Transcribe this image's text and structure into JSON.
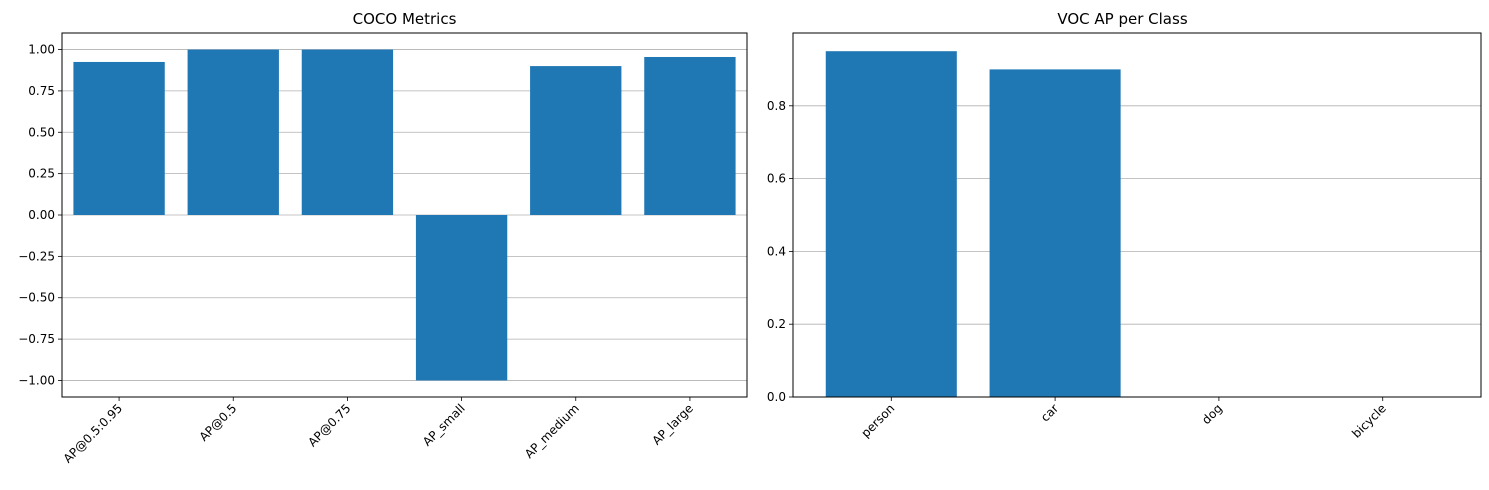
{
  "chart_data": [
    {
      "type": "bar",
      "title": "COCO Metrics",
      "xlabel": "",
      "ylabel": "",
      "categories": [
        "AP@0.5:0.95",
        "AP@0.5",
        "AP@0.75",
        "AP_small",
        "AP_medium",
        "AP_large"
      ],
      "values": [
        0.925,
        1.0,
        1.0,
        -1.0,
        0.9,
        0.955
      ],
      "ylim": [
        -1.1,
        1.1
      ],
      "yticks": [
        -1.0,
        -0.75,
        -0.5,
        -0.25,
        0.0,
        0.25,
        0.5,
        0.75,
        1.0
      ],
      "ytick_labels": [
        "−1.00",
        "−0.75",
        "−0.50",
        "−0.25",
        "0.00",
        "0.25",
        "0.50",
        "0.75",
        "1.00"
      ],
      "grid": "y",
      "bar_color": "#1f77b4"
    },
    {
      "type": "bar",
      "title": "VOC AP per Class",
      "xlabel": "",
      "ylabel": "",
      "categories": [
        "person",
        "car",
        "dog",
        "bicycle"
      ],
      "values": [
        0.95,
        0.9,
        0.0,
        0.0
      ],
      "ylim": [
        0.0,
        1.0
      ],
      "yticks": [
        0.0,
        0.2,
        0.4,
        0.6,
        0.8
      ],
      "ytick_labels": [
        "0.0",
        "0.2",
        "0.4",
        "0.6",
        "0.8"
      ],
      "grid": "y",
      "bar_color": "#1f77b4"
    }
  ]
}
